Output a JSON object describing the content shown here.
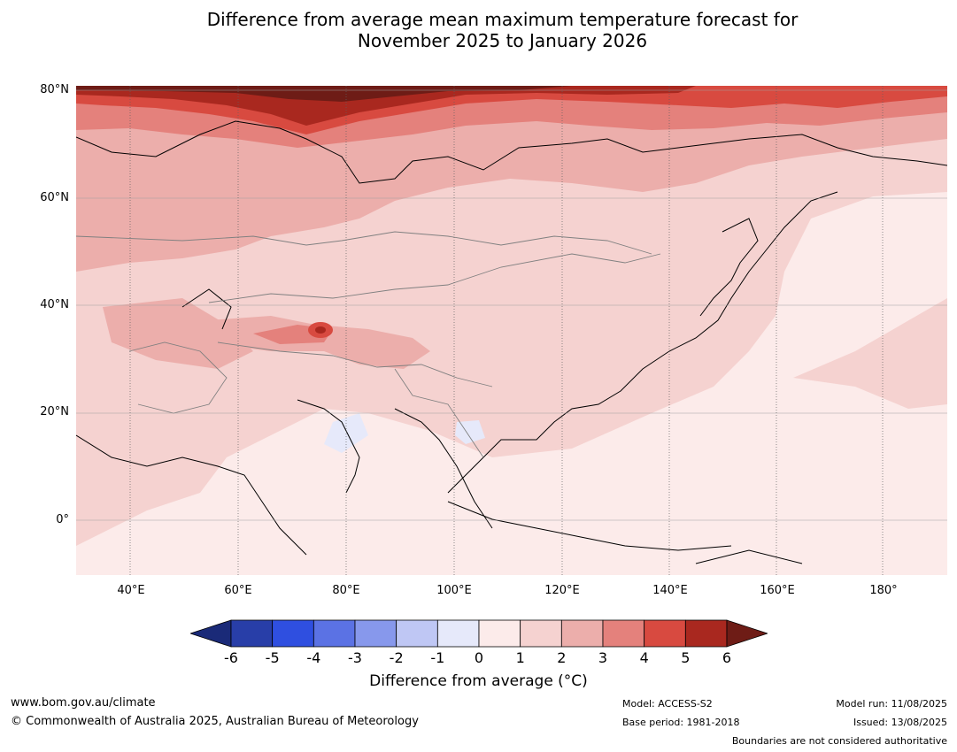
{
  "title_line1": "Difference from average mean maximum temperature forecast for",
  "title_line2": "November 2025 to January 2026",
  "map": {
    "lat_labels": [
      "80°N",
      "60°N",
      "40°N",
      "20°N",
      "0°"
    ],
    "lon_labels": [
      "40°E",
      "60°E",
      "80°E",
      "100°E",
      "120°E",
      "140°E",
      "160°E",
      "180°"
    ],
    "extent": {
      "lon_min": 30,
      "lon_max": 191,
      "lat_min": -10,
      "lat_max": 80
    }
  },
  "colorbar": {
    "ticks": [
      "-6",
      "-5",
      "-4",
      "-3",
      "-2",
      "-1",
      "0",
      "1",
      "2",
      "3",
      "4",
      "5",
      "6"
    ],
    "colors": [
      "#1a2a78",
      "#283ea8",
      "#2f4fe0",
      "#5b72e4",
      "#8798ec",
      "#bfc7f4",
      "#e6e9fa",
      "#fcebea",
      "#f5d2d0",
      "#ecaeab",
      "#e4817c",
      "#d84a40",
      "#a9281f",
      "#6e1c16"
    ],
    "label": "Difference from average (°C)"
  },
  "footer": {
    "url": "www.bom.gov.au/climate",
    "copyright": "© Commonwealth of Australia 2025, Australian Bureau of Meteorology",
    "model": "Model: ACCESS-S2",
    "base_period": "Base period: 1981-2018",
    "model_run": "Model run: 11/08/2025",
    "issued": "Issued: 13/08/2025",
    "disclaimer": "Boundaries are not considered authoritative"
  }
}
